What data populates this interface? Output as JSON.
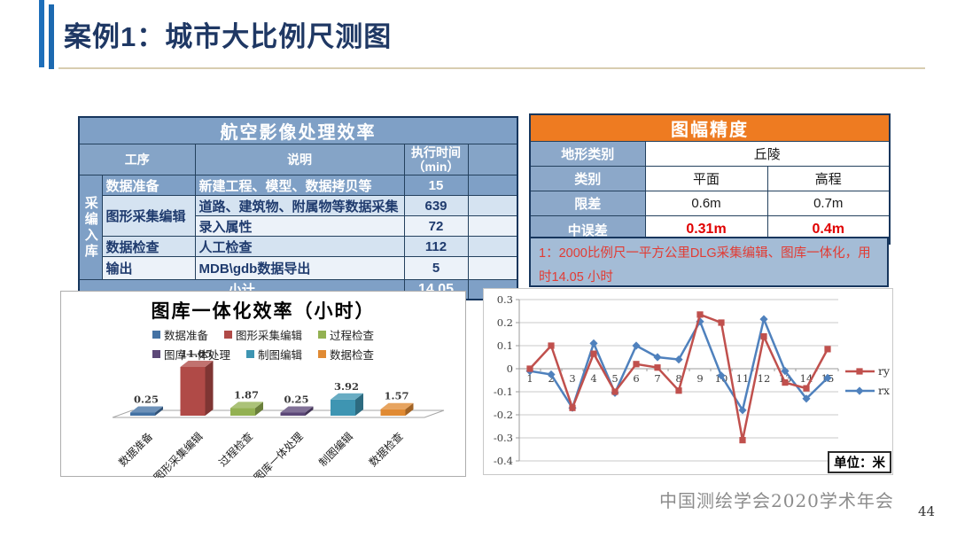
{
  "slide": {
    "title": "案例1：城市大比例尺测图",
    "footer": "中国测绘学会2020学术年会",
    "page_number": "44"
  },
  "colors": {
    "accent_bar_blue": "#1E6FBA",
    "title_text": "#1F3864",
    "underline_tan": "#D8CDB0",
    "table_header_blue": "#7FA0C6",
    "orange_header": "#EE7B21",
    "subtotal_red": "#FF1111",
    "rmse_red": "#E00000",
    "note_red": "#E23B33"
  },
  "left_table": {
    "title": "航空影像处理效率",
    "header": {
      "process": "工序",
      "description": "说明",
      "time": "执行时间",
      "time_unit": "（min）"
    },
    "group_label": "采编入库",
    "rows": [
      {
        "process": "数据准备",
        "description": "新建工程、模型、数据拷贝等",
        "time": "15"
      },
      {
        "process": "图形采集编辑",
        "description": "道路、建筑物、附属物等数据采集",
        "time": "639"
      },
      {
        "process": "",
        "description": "录入属性",
        "time": "72"
      },
      {
        "process": "数据检查",
        "description": "人工检查",
        "time": "112"
      },
      {
        "process": "输出",
        "description": "MDB\\gdb数据导出",
        "time": "5"
      }
    ],
    "subtotal": {
      "label": "小计",
      "value": "14.05"
    }
  },
  "right_table": {
    "title": "图幅精度",
    "terrain_label": "地形类别",
    "terrain_value": "丘陵",
    "category_label": "类别",
    "category_plane": "平面",
    "category_height": "高程",
    "tolerance_label": "限差",
    "tolerance_plane": "0.6m",
    "tolerance_height": "0.7m",
    "rmse_label": "中误差",
    "rmse_plane": "0.31m",
    "rmse_height": "0.4m",
    "note": "1：2000比例尺一平方公里DLG采集编辑、图库一体化，用时14.05 小时"
  },
  "chart_data": [
    {
      "type": "bar",
      "style": "3d",
      "title": "图库一体化效率（小时）",
      "categories": [
        "数据准备",
        "图形采集编辑",
        "过程检查",
        "图库一体处理",
        "制图编辑",
        "数据检查"
      ],
      "values": [
        0.25,
        11.85,
        1.87,
        0.25,
        3.92,
        1.57
      ],
      "colors": [
        "#4472A4",
        "#B04A47",
        "#93B152",
        "#5C4878",
        "#3E95B2",
        "#E08A33"
      ],
      "legend_position": "top",
      "grid": false
    },
    {
      "type": "line",
      "title": "",
      "x": [
        1,
        2,
        3,
        4,
        5,
        6,
        7,
        8,
        9,
        10,
        11,
        12,
        13,
        14,
        15
      ],
      "series": [
        {
          "name": "ry",
          "color": "#C0504D",
          "marker": "square",
          "values": [
            0,
            0.1,
            -0.17,
            0.065,
            -0.1,
            0.02,
            0.005,
            -0.095,
            0.235,
            0.2,
            -0.31,
            0.14,
            -0.06,
            -0.085,
            0.085
          ]
        },
        {
          "name": "rx",
          "color": "#4F81BD",
          "marker": "diamond",
          "values": [
            -0.01,
            -0.025,
            -0.17,
            0.11,
            -0.105,
            0.1,
            0.05,
            0.04,
            0.205,
            -0.03,
            -0.18,
            0.215,
            -0.01,
            -0.13,
            -0.04
          ]
        }
      ],
      "ylim": [
        -0.4,
        0.3
      ],
      "ytick_step": 0.1,
      "grid": true,
      "legend_position": "right",
      "unit_label": "单位：米"
    }
  ]
}
